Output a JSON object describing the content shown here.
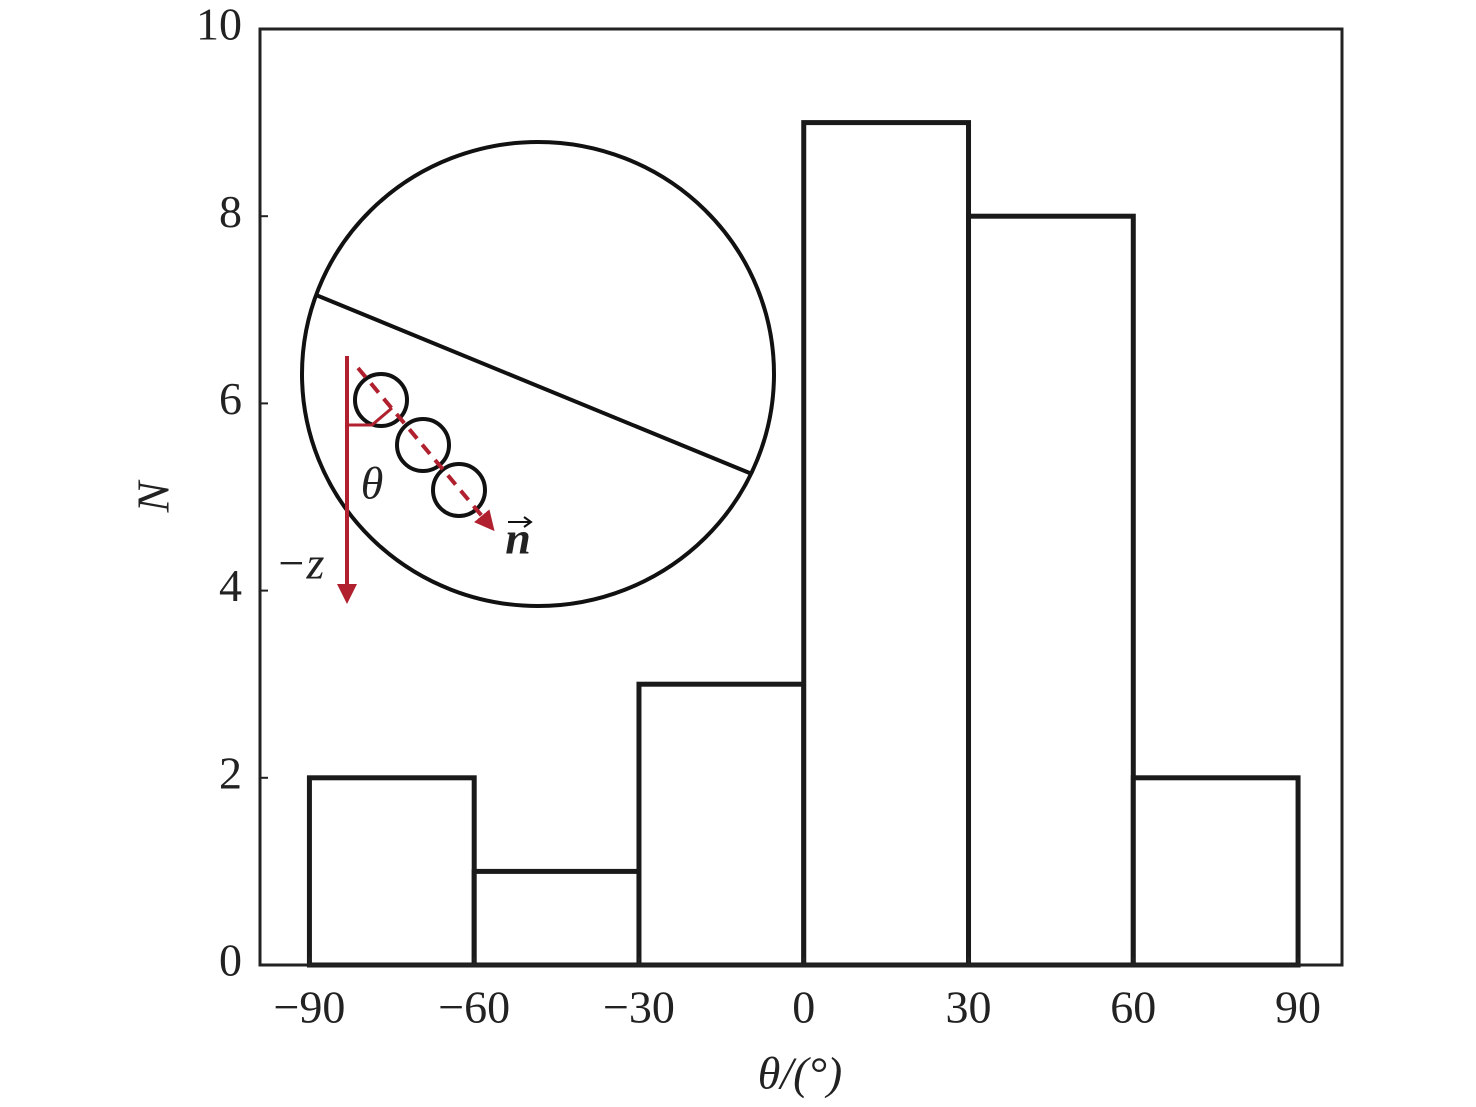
{
  "chart_data": {
    "type": "histogram",
    "bins": [
      -90,
      -60,
      -30,
      0,
      30,
      60,
      90
    ],
    "values": [
      2,
      1,
      3,
      9,
      8,
      2
    ],
    "color": "#1a1a1a",
    "xlabel": "θ/(°)",
    "ylabel": "N",
    "xlim": [
      -99,
      98
    ],
    "ylim": [
      0,
      10
    ],
    "xticks": [
      {
        "value": -90,
        "label": "−90"
      },
      {
        "value": -60,
        "label": "−60"
      },
      {
        "value": -30,
        "label": "−30"
      },
      0,
      30,
      60,
      90
    ],
    "yticks": [
      0,
      2,
      4,
      6,
      8,
      10
    ],
    "grid": false,
    "annotations": [
      "θ",
      "−z",
      "n"
    ]
  }
}
